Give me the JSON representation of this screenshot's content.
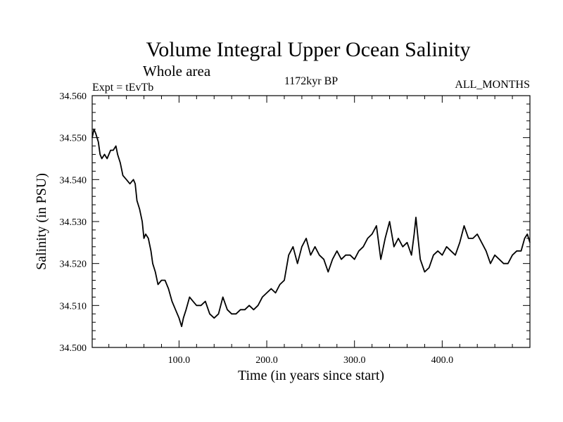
{
  "chart_data": {
    "type": "line",
    "title": "Volume Integral Upper Ocean Salinity",
    "subtitle": "Whole area",
    "annotations": {
      "left": "Expt = tEvTb",
      "center": "1172kyr BP",
      "right": "ALL_MONTHS"
    },
    "xlabel": "Time (in years since start)",
    "ylabel": "Salinity (in PSU)",
    "xlim": [
      1,
      500
    ],
    "ylim": [
      34.5,
      34.56
    ],
    "xticks": [
      {
        "value": 100,
        "label": "100.0"
      },
      {
        "value": 200,
        "label": "200.0"
      },
      {
        "value": 300,
        "label": "300.0"
      },
      {
        "value": 400,
        "label": "400.0"
      }
    ],
    "yticks": [
      {
        "value": 34.5,
        "label": "34.500"
      },
      {
        "value": 34.51,
        "label": "34.510"
      },
      {
        "value": 34.52,
        "label": "34.520"
      },
      {
        "value": 34.53,
        "label": "34.530"
      },
      {
        "value": 34.54,
        "label": "34.540"
      },
      {
        "value": 34.55,
        "label": "34.550"
      },
      {
        "value": 34.56,
        "label": "34.560"
      }
    ],
    "grid": false,
    "series": [
      {
        "name": "salinity",
        "x": [
          1,
          3,
          5,
          8,
          10,
          12,
          15,
          18,
          20,
          22,
          25,
          28,
          30,
          33,
          36,
          40,
          44,
          48,
          50,
          52,
          55,
          58,
          60,
          62,
          65,
          68,
          70,
          73,
          76,
          80,
          84,
          88,
          92,
          96,
          100,
          103,
          105,
          108,
          112,
          116,
          120,
          125,
          130,
          135,
          140,
          145,
          150,
          155,
          160,
          165,
          170,
          175,
          180,
          185,
          190,
          195,
          200,
          205,
          210,
          215,
          220,
          225,
          230,
          235,
          240,
          245,
          250,
          255,
          260,
          265,
          270,
          275,
          280,
          285,
          290,
          295,
          300,
          305,
          310,
          315,
          320,
          325,
          330,
          335,
          340,
          345,
          350,
          355,
          360,
          365,
          368,
          370,
          372,
          375,
          380,
          385,
          390,
          395,
          400,
          405,
          410,
          415,
          420,
          425,
          430,
          435,
          440,
          445,
          450,
          455,
          460,
          465,
          470,
          475,
          480,
          485,
          490,
          494,
          497,
          500
        ],
        "y": [
          34.55,
          34.552,
          34.551,
          34.549,
          34.546,
          34.545,
          34.546,
          34.545,
          34.546,
          34.547,
          34.547,
          34.548,
          34.546,
          34.544,
          34.541,
          34.54,
          34.539,
          34.54,
          34.539,
          34.535,
          34.533,
          34.53,
          34.526,
          34.527,
          34.526,
          34.523,
          34.52,
          34.518,
          34.515,
          34.516,
          34.516,
          34.514,
          34.511,
          34.509,
          34.507,
          34.505,
          34.507,
          34.509,
          34.512,
          34.511,
          34.51,
          34.51,
          34.511,
          34.508,
          34.507,
          34.508,
          34.512,
          34.509,
          34.508,
          34.508,
          34.509,
          34.509,
          34.51,
          34.509,
          34.51,
          34.512,
          34.513,
          34.514,
          34.513,
          34.515,
          34.516,
          34.522,
          34.524,
          34.52,
          34.524,
          34.526,
          34.522,
          34.524,
          34.522,
          34.521,
          34.518,
          34.521,
          34.523,
          34.521,
          34.522,
          34.522,
          34.521,
          34.523,
          34.524,
          34.526,
          34.527,
          34.529,
          34.521,
          34.526,
          34.53,
          34.524,
          34.526,
          34.524,
          34.525,
          34.522,
          34.527,
          34.531,
          34.527,
          34.521,
          34.518,
          34.519,
          34.522,
          34.523,
          34.522,
          34.524,
          34.523,
          34.522,
          34.525,
          34.529,
          34.526,
          34.526,
          34.527,
          34.525,
          34.523,
          34.52,
          34.522,
          34.521,
          34.52,
          34.52,
          34.522,
          34.523,
          34.523,
          34.526,
          34.527,
          34.525
        ]
      }
    ]
  }
}
